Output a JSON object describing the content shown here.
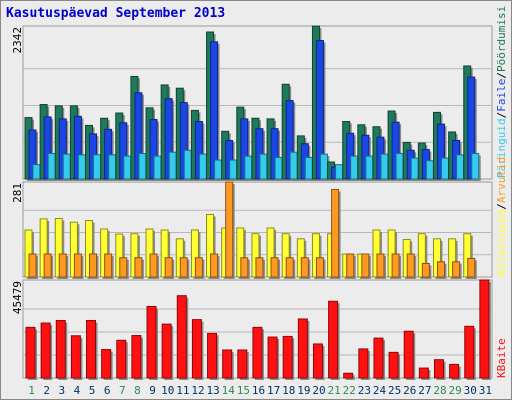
{
  "title": "Kasutuspäevad September 2013",
  "colors": {
    "visits": "#1e7a5a",
    "pages": "#1a46e6",
    "files": "#33ccee",
    "hits": "#ffff33",
    "kbytes": "#ff1111",
    "sites": "#ff9922",
    "grid": "#b8b8b8",
    "weekend_label": "#2a8a5a",
    "weekday_label": "#003366"
  },
  "labels": {
    "top_max": "2342",
    "mid_max": "281",
    "bot_max": "45479",
    "top_right": [
      "Päringuid",
      "/",
      "Faile",
      "/",
      "Pöördumisi"
    ],
    "mid_right": [
      "Külastused",
      "/",
      "Arvutid"
    ],
    "bot_right": "KBaite"
  },
  "chart_data": [
    {
      "type": "bar",
      "title": "Kasutuspäevad September 2013",
      "categories": [
        "1",
        "2",
        "3",
        "4",
        "5",
        "6",
        "7",
        "8",
        "9",
        "10",
        "11",
        "12",
        "13",
        "14",
        "15",
        "16",
        "17",
        "18",
        "19",
        "20",
        "21",
        "22",
        "23",
        "24",
        "25",
        "26",
        "27",
        "28",
        "29",
        "30",
        "31"
      ],
      "weekend_days": [
        "1",
        "7",
        "8",
        "14",
        "15",
        "21",
        "22",
        "28",
        "29"
      ],
      "ylim": [
        0,
        2342
      ],
      "series": [
        {
          "name": "Päringuid",
          "values": [
            940,
            1140,
            1120,
            1120,
            820,
            930,
            1010,
            1570,
            1090,
            1440,
            1390,
            1050,
            2250,
            730,
            1100,
            930,
            920,
            1450,
            660,
            2340,
            260,
            880,
            830,
            800,
            1040,
            560,
            550,
            1020,
            720,
            1730,
            0
          ]
        },
        {
          "name": "Faile",
          "values": [
            750,
            950,
            920,
            960,
            690,
            760,
            860,
            1320,
            910,
            1230,
            1170,
            880,
            2100,
            590,
            920,
            770,
            770,
            1200,
            540,
            2120,
            180,
            700,
            670,
            640,
            870,
            440,
            450,
            840,
            590,
            1560,
            0
          ]
        },
        {
          "name": "Pöördumisi",
          "values": [
            220,
            390,
            380,
            370,
            370,
            370,
            350,
            390,
            350,
            410,
            440,
            380,
            290,
            290,
            350,
            380,
            330,
            410,
            330,
            380,
            220,
            350,
            350,
            380,
            390,
            320,
            280,
            320,
            370,
            390,
            0
          ]
        }
      ]
    },
    {
      "type": "bar",
      "categories": [
        "1",
        "2",
        "3",
        "4",
        "5",
        "6",
        "7",
        "8",
        "9",
        "10",
        "11",
        "12",
        "13",
        "14",
        "15",
        "16",
        "17",
        "18",
        "19",
        "20",
        "21",
        "22",
        "23",
        "24",
        "25",
        "26",
        "27",
        "28",
        "29",
        "30",
        "31"
      ],
      "ylim": [
        0,
        281
      ],
      "series": [
        {
          "name": "Külastused",
          "values": [
            139,
            172,
            173,
            162,
            167,
            142,
            127,
            128,
            142,
            139,
            113,
            139,
            185,
            145,
            145,
            128,
            145,
            128,
            113,
            128,
            128,
            68,
            68,
            139,
            139,
            111,
            128,
            113,
            113,
            128,
            0
          ]
        },
        {
          "name": "Arvutid",
          "values": [
            68,
            68,
            68,
            68,
            68,
            68,
            57,
            57,
            68,
            57,
            57,
            57,
            68,
            281,
            57,
            57,
            57,
            57,
            57,
            57,
            259,
            68,
            68,
            68,
            68,
            68,
            40,
            45,
            45,
            55,
            0
          ]
        }
      ]
    },
    {
      "type": "bar",
      "categories": [
        "1",
        "2",
        "3",
        "4",
        "5",
        "6",
        "7",
        "8",
        "9",
        "10",
        "11",
        "12",
        "13",
        "14",
        "15",
        "16",
        "17",
        "18",
        "19",
        "20",
        "21",
        "22",
        "23",
        "24",
        "25",
        "26",
        "27",
        "28",
        "29",
        "30",
        "31"
      ],
      "ylim": [
        0,
        45479
      ],
      "series": [
        {
          "name": "KBaite",
          "values": [
            23500,
            25500,
            26700,
            19600,
            26700,
            13200,
            17500,
            19700,
            33200,
            25000,
            38200,
            27100,
            20700,
            13000,
            13000,
            23500,
            19000,
            19300,
            27400,
            15800,
            35600,
            2200,
            13500,
            18500,
            11900,
            21700,
            4600,
            8500,
            6300,
            24000,
            45479
          ]
        }
      ]
    }
  ]
}
